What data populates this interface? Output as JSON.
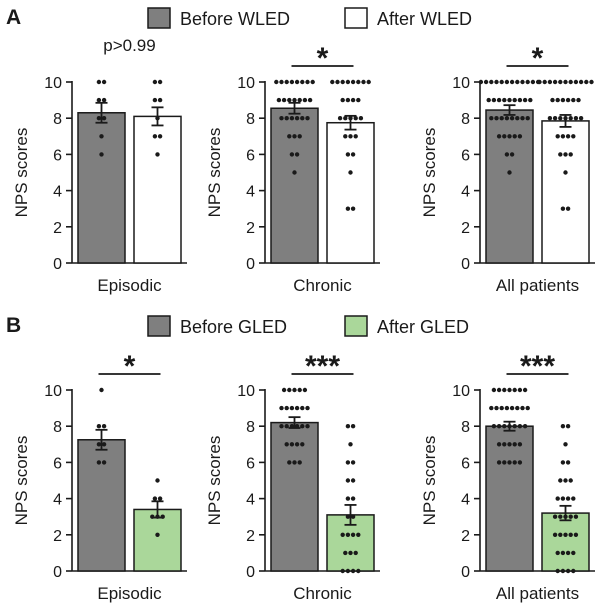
{
  "colors": {
    "before": "#7f7f7f",
    "after_w": "#ffffff",
    "after_g": "#aad79a",
    "ink": "#1a1a1a"
  },
  "panels": [
    {
      "letter": "A",
      "legend": {
        "before": "Before WLED",
        "after": "After WLED"
      },
      "after_color": "#ffffff",
      "charts": [
        {
          "category": "Episodic",
          "annotation": "p>0.99",
          "ylabel": "NPS scores",
          "bars": [
            {
              "name": "Before WLED",
              "mean": 8.3,
              "sem": 0.55,
              "points": [
                10,
                10,
                9,
                9,
                8,
                8,
                7,
                6
              ]
            },
            {
              "name": "After WLED",
              "mean": 8.1,
              "sem": 0.5,
              "points": [
                10,
                10,
                9,
                9,
                8,
                7,
                7,
                6
              ]
            }
          ]
        },
        {
          "category": "Chronic",
          "annotation": "*",
          "ylabel": "NPS scores",
          "bars": [
            {
              "name": "Before WLED",
              "mean": 8.55,
              "sem": 0.3,
              "points": [
                10,
                10,
                10,
                10,
                10,
                10,
                10,
                10,
                9,
                9,
                9,
                9,
                9,
                9,
                9,
                8,
                8,
                8,
                8,
                8,
                8,
                7,
                7,
                7,
                6,
                6,
                5
              ]
            },
            {
              "name": "After WLED",
              "mean": 7.75,
              "sem": 0.38,
              "points": [
                10,
                10,
                10,
                10,
                10,
                10,
                10,
                10,
                9,
                9,
                9,
                9,
                8,
                8,
                8,
                8,
                8,
                7,
                7,
                7,
                6,
                6,
                5,
                3,
                3
              ]
            }
          ]
        },
        {
          "category": "All patients",
          "annotation": "*",
          "ylabel": "NPS scores",
          "bars": [
            {
              "name": "Before WLED",
              "mean": 8.45,
              "sem": 0.27,
              "points": [
                10,
                10,
                10,
                10,
                10,
                10,
                10,
                10,
                10,
                10,
                10,
                10,
                9,
                9,
                9,
                9,
                9,
                9,
                9,
                9,
                9,
                8,
                8,
                8,
                8,
                8,
                8,
                8,
                8,
                7,
                7,
                7,
                7,
                7,
                6,
                6,
                5
              ]
            },
            {
              "name": "After WLED",
              "mean": 7.85,
              "sem": 0.33,
              "points": [
                10,
                10,
                10,
                10,
                10,
                10,
                10,
                10,
                10,
                10,
                10,
                9,
                9,
                9,
                9,
                9,
                9,
                8,
                8,
                8,
                8,
                8,
                8,
                8,
                7,
                7,
                7,
                7,
                6,
                6,
                6,
                5,
                3,
                3
              ]
            }
          ]
        }
      ]
    },
    {
      "letter": "B",
      "legend": {
        "before": "Before GLED",
        "after": "After GLED"
      },
      "after_color": "#aad79a",
      "charts": [
        {
          "category": "Episodic",
          "annotation": "*",
          "ylabel": "NPS scores",
          "bars": [
            {
              "name": "Before GLED",
              "mean": 7.25,
              "sem": 0.55,
              "points": [
                10,
                8,
                8,
                7,
                7,
                6,
                6
              ]
            },
            {
              "name": "After GLED",
              "mean": 3.4,
              "sem": 0.45,
              "points": [
                5,
                4,
                4,
                3,
                3,
                3,
                2
              ]
            }
          ]
        },
        {
          "category": "Chronic",
          "annotation": "***",
          "ylabel": "NPS scores",
          "bars": [
            {
              "name": "Before GLED",
              "mean": 8.2,
              "sem": 0.3,
              "points": [
                10,
                10,
                10,
                10,
                10,
                9,
                9,
                9,
                9,
                9,
                9,
                8,
                8,
                8,
                8,
                8,
                8,
                7,
                7,
                7,
                7,
                6,
                6,
                6
              ]
            },
            {
              "name": "After GLED",
              "mean": 3.1,
              "sem": 0.55,
              "points": [
                8,
                8,
                7,
                6,
                6,
                5,
                5,
                4,
                4,
                3,
                3,
                2,
                2,
                2,
                2,
                1,
                1,
                1,
                0,
                0,
                0,
                0
              ]
            }
          ]
        },
        {
          "category": "All patients",
          "annotation": "***",
          "ylabel": "NPS scores",
          "bars": [
            {
              "name": "Before GLED",
              "mean": 8.0,
              "sem": 0.25,
              "points": [
                10,
                10,
                10,
                10,
                10,
                10,
                10,
                9,
                9,
                9,
                9,
                9,
                9,
                9,
                9,
                8,
                8,
                8,
                8,
                8,
                8,
                8,
                7,
                7,
                7,
                7,
                7,
                6,
                6,
                6,
                6,
                6
              ]
            },
            {
              "name": "After GLED",
              "mean": 3.2,
              "sem": 0.4,
              "points": [
                8,
                8,
                7,
                6,
                6,
                5,
                5,
                5,
                4,
                4,
                4,
                4,
                3,
                3,
                3,
                3,
                3,
                2,
                2,
                2,
                2,
                2,
                1,
                1,
                1,
                1,
                0,
                0,
                0,
                0
              ]
            }
          ]
        }
      ]
    }
  ],
  "chart_data": [
    {
      "type": "bar",
      "title": "",
      "xlabel": "",
      "ylabel": "NPS scores",
      "ylim": [
        0,
        10
      ],
      "categories": [
        "Episodic"
      ],
      "series": [
        {
          "name": "Before WLED",
          "values": [
            8.3
          ]
        },
        {
          "name": "After WLED",
          "values": [
            8.1
          ]
        }
      ],
      "annotation": "p>0.99"
    },
    {
      "type": "bar",
      "title": "",
      "xlabel": "",
      "ylabel": "NPS scores",
      "ylim": [
        0,
        10
      ],
      "categories": [
        "Chronic"
      ],
      "series": [
        {
          "name": "Before WLED",
          "values": [
            8.55
          ]
        },
        {
          "name": "After WLED",
          "values": [
            7.75
          ]
        }
      ],
      "annotation": "*"
    },
    {
      "type": "bar",
      "title": "",
      "xlabel": "",
      "ylabel": "NPS scores",
      "ylim": [
        0,
        10
      ],
      "categories": [
        "All patients"
      ],
      "series": [
        {
          "name": "Before WLED",
          "values": [
            8.45
          ]
        },
        {
          "name": "After WLED",
          "values": [
            7.85
          ]
        }
      ],
      "annotation": "*"
    },
    {
      "type": "bar",
      "title": "",
      "xlabel": "",
      "ylabel": "NPS scores",
      "ylim": [
        0,
        10
      ],
      "categories": [
        "Episodic"
      ],
      "series": [
        {
          "name": "Before GLED",
          "values": [
            7.25
          ]
        },
        {
          "name": "After GLED",
          "values": [
            3.4
          ]
        }
      ],
      "annotation": "*"
    },
    {
      "type": "bar",
      "title": "",
      "xlabel": "",
      "ylabel": "NPS scores",
      "ylim": [
        0,
        10
      ],
      "categories": [
        "Chronic"
      ],
      "series": [
        {
          "name": "Before GLED",
          "values": [
            8.2
          ]
        },
        {
          "name": "After GLED",
          "values": [
            3.1
          ]
        }
      ],
      "annotation": "***"
    },
    {
      "type": "bar",
      "title": "",
      "xlabel": "",
      "ylabel": "NPS scores",
      "ylim": [
        0,
        10
      ],
      "categories": [
        "All patients"
      ],
      "series": [
        {
          "name": "Before GLED",
          "values": [
            8.0
          ]
        },
        {
          "name": "After GLED",
          "values": [
            3.2
          ]
        }
      ],
      "annotation": "***"
    }
  ]
}
